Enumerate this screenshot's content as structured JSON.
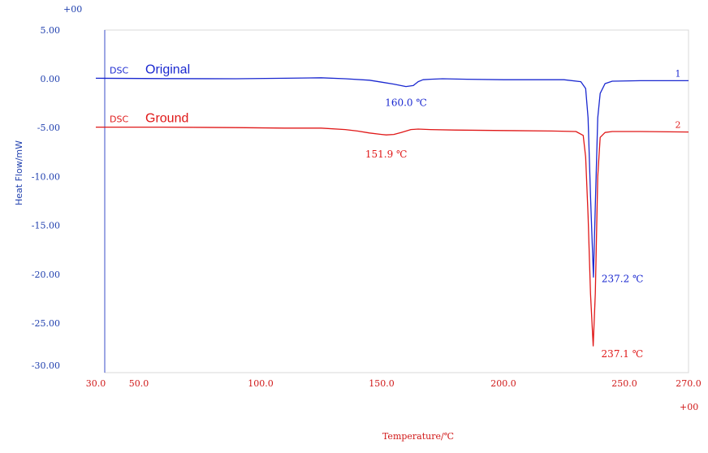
{
  "chart_data": {
    "type": "line",
    "title": "",
    "xlabel": "Temperature/℃",
    "ylabel": "Heat Flow/mW",
    "xlim": [
      30.0,
      270.0
    ],
    "ylim": [
      -30.0,
      5.0
    ],
    "x_ticks": [
      30.0,
      50.0,
      100.0,
      150.0,
      200.0,
      250.0,
      270.0
    ],
    "x_tick_labels": [
      "30.0",
      "50.0",
      "100.0",
      "150.0",
      "200.0",
      "250.0",
      "270.0"
    ],
    "y_ticks": [
      5.0,
      0.0,
      -5.0,
      -10.0,
      -15.0,
      -20.0,
      -25.0,
      -30.0
    ],
    "y_tick_labels": [
      "5.00",
      "0.00",
      "-5.00",
      "-10.00",
      "-15.00",
      "-20.00",
      "-25.00",
      "-30.00"
    ],
    "x_exponent_label": "+00",
    "y_exponent_label": "+00",
    "grid": false,
    "series": [
      {
        "name": "Original",
        "prefix": "DSC",
        "curve_number": "1",
        "color": "#1a28d0",
        "x": [
          30,
          60,
          90,
          110,
          125,
          135,
          145,
          150,
          155,
          160,
          163,
          165,
          167,
          170,
          175,
          185,
          200,
          215,
          225,
          232,
          234,
          235,
          236,
          237.2,
          238,
          239,
          240,
          242,
          245,
          255,
          270
        ],
        "y": [
          0.05,
          0.02,
          0.0,
          0.05,
          0.1,
          0.0,
          -0.15,
          -0.35,
          -0.55,
          -0.8,
          -0.7,
          -0.3,
          -0.1,
          -0.05,
          0.0,
          -0.05,
          -0.1,
          -0.1,
          -0.1,
          -0.3,
          -1.0,
          -4.0,
          -12.0,
          -20.3,
          -13.0,
          -4.0,
          -1.5,
          -0.5,
          -0.25,
          -0.2,
          -0.2
        ],
        "annotations": [
          {
            "x": 160.0,
            "y": -0.8,
            "label": "160.0 ℃"
          },
          {
            "x": 237.2,
            "y": -20.3,
            "label": "237.2 ℃"
          }
        ]
      },
      {
        "name": "Ground",
        "prefix": "DSC",
        "curve_number": "2",
        "color": "#e01818",
        "x": [
          30,
          60,
          90,
          110,
          125,
          135,
          140,
          145,
          150,
          151.9,
          155,
          158,
          162,
          165,
          170,
          180,
          200,
          220,
          230,
          233,
          234,
          235,
          236,
          237.1,
          238,
          239,
          240,
          242,
          245,
          255,
          270
        ],
        "y": [
          -4.95,
          -4.95,
          -5.0,
          -5.05,
          -5.05,
          -5.2,
          -5.35,
          -5.55,
          -5.7,
          -5.75,
          -5.7,
          -5.5,
          -5.2,
          -5.15,
          -5.2,
          -5.25,
          -5.3,
          -5.35,
          -5.4,
          -5.8,
          -8.0,
          -14.0,
          -22.0,
          -27.7,
          -22.0,
          -10.0,
          -6.0,
          -5.5,
          -5.4,
          -5.4,
          -5.45
        ],
        "annotations": [
          {
            "x": 151.9,
            "y": -5.75,
            "label": "151.9 ℃"
          },
          {
            "x": 237.1,
            "y": -27.7,
            "label": "237.1 ℃"
          }
        ]
      }
    ]
  }
}
